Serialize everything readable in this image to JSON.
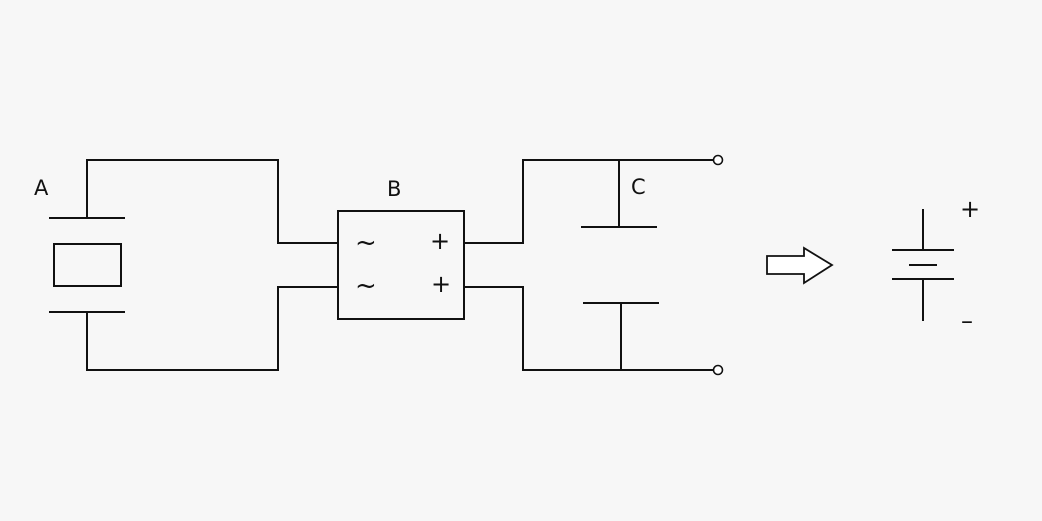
{
  "labels": {
    "component_a": "A",
    "component_b": "B",
    "component_c": "C"
  },
  "bridge": {
    "ac_symbol_top": "~",
    "ac_symbol_bottom": "~",
    "dc_symbol_top": "+",
    "dc_symbol_bottom": "+"
  },
  "battery": {
    "positive": "+",
    "negative": "–"
  },
  "colors": {
    "background": "#f7f7f7",
    "stroke": "#111111"
  }
}
